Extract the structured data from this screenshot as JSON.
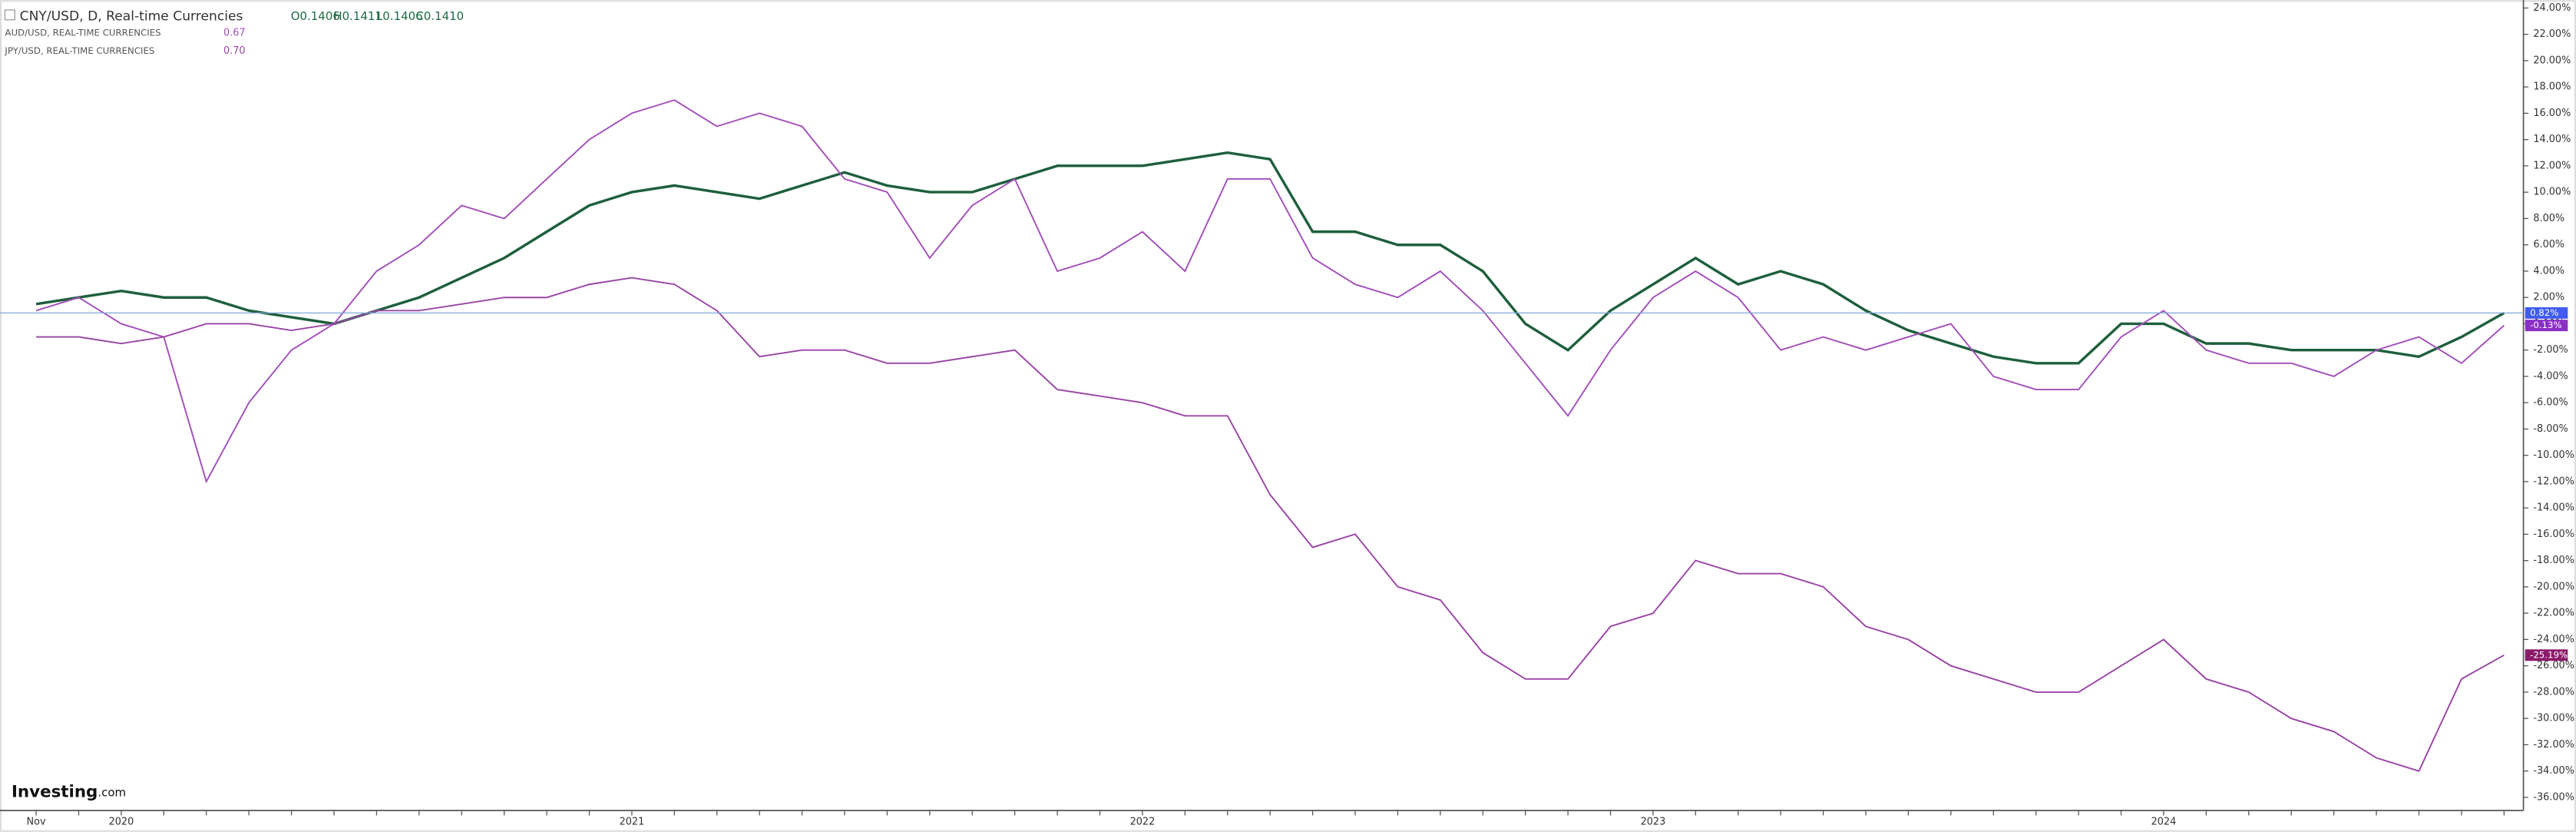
{
  "chart_data": {
    "type": "line",
    "header": {
      "title": "CNY/USD, D, Real-time Currencies",
      "ohlc": [
        "O0.1406",
        "H0.1411",
        "L0.1406",
        "C0.1410"
      ]
    },
    "logo": {
      "brand": "Investing",
      "suffix": ".com"
    },
    "categories": [
      "Nov",
      null,
      "2020",
      null,
      null,
      null,
      null,
      null,
      null,
      null,
      null,
      null,
      null,
      null,
      "2021",
      null,
      null,
      null,
      null,
      null,
      null,
      null,
      null,
      null,
      null,
      null,
      "2022",
      null,
      null,
      null,
      null,
      null,
      null,
      null,
      null,
      null,
      null,
      null,
      "2023",
      null,
      null,
      null,
      null,
      null,
      null,
      null,
      null,
      null,
      null,
      null,
      "2024",
      null,
      null,
      null,
      null,
      null,
      null,
      null,
      null
    ],
    "series": [
      {
        "name": "CNY/USD, D, Real-time Currencies",
        "color": "#1e5f3c",
        "label_color": "#3f5bf0",
        "values": [
          1.5,
          2,
          2.5,
          2,
          2,
          1,
          0.5,
          0,
          1,
          2,
          3.5,
          5,
          7,
          9,
          10,
          10.5,
          10,
          9.5,
          10.5,
          11.5,
          10.5,
          10,
          10,
          11,
          12,
          12,
          12,
          12.5,
          13,
          12.5,
          7,
          7,
          6,
          6,
          4,
          0,
          -2,
          1,
          3,
          5,
          3,
          4,
          3,
          1,
          -0.5,
          -1.5,
          -2.5,
          -3,
          -3,
          0,
          0,
          -1.5,
          -1.5,
          -2,
          -2,
          -2,
          -2.5,
          -1,
          0.82
        ],
        "value_labels": [
          null,
          null,
          null,
          null,
          null,
          null,
          null,
          null,
          null,
          null,
          null,
          null,
          null,
          null,
          null,
          null,
          null,
          null,
          null,
          null,
          null,
          null,
          null,
          null,
          null,
          null,
          null,
          null,
          null,
          null,
          null,
          null,
          null,
          null,
          null,
          null,
          null,
          null,
          null,
          null,
          null,
          null,
          null,
          null,
          null,
          null,
          null,
          null,
          null,
          null,
          null,
          null,
          null,
          null,
          null,
          null,
          null,
          null,
          "0.82%"
        ]
      },
      {
        "name": "AUD/USD, REAL-TIME CURRENCIES",
        "last": "0.67",
        "color": "#a24fba",
        "label_color": "#8a2fc4",
        "values": [
          1,
          2,
          0,
          -1,
          -12,
          -6,
          -2,
          0,
          4,
          6,
          9,
          8,
          11,
          14,
          16,
          17,
          15,
          16,
          15,
          11,
          10,
          5,
          9,
          11,
          4,
          5,
          7,
          4,
          11,
          11,
          5,
          3,
          2,
          4,
          1,
          -3,
          -7,
          -2,
          2,
          4,
          2,
          -2,
          -1,
          -2,
          -1,
          0,
          -4,
          -5,
          -5,
          -1,
          1,
          -2,
          -3,
          -3,
          -4,
          -2,
          -1,
          -3,
          -0.13
        ],
        "value_labels": [
          null,
          null,
          null,
          null,
          null,
          null,
          null,
          null,
          null,
          null,
          null,
          null,
          null,
          null,
          null,
          null,
          null,
          null,
          null,
          null,
          null,
          null,
          null,
          null,
          null,
          null,
          null,
          null,
          null,
          null,
          null,
          null,
          null,
          null,
          null,
          null,
          null,
          null,
          null,
          null,
          null,
          null,
          null,
          null,
          null,
          null,
          null,
          null,
          null,
          null,
          null,
          null,
          null,
          null,
          null,
          null,
          null,
          null,
          "-0.13%"
        ]
      },
      {
        "name": "JPY/USD, REAL-TIME CURRENCIES",
        "last": "0.70",
        "color": "#9a45a6",
        "label_color": "#8c1a6a",
        "values": [
          -1,
          -1,
          -1.5,
          -1,
          0,
          0,
          -0.5,
          0,
          1,
          1,
          1.5,
          2,
          2,
          3,
          3.5,
          3,
          1,
          -2.5,
          -2,
          -2,
          -3,
          -3,
          -2.5,
          -2,
          -5,
          -5.5,
          -6,
          -7,
          -7,
          -13,
          -17,
          -16,
          -20,
          -21,
          -25,
          -27,
          -27,
          -23,
          -22,
          -18,
          -19,
          -19,
          -20,
          -23,
          -24,
          -26,
          -27,
          -28,
          -28,
          -26,
          -24,
          -27,
          -28,
          -30,
          -31,
          -33,
          -34,
          -27,
          -25.19
        ],
        "value_labels": [
          null,
          null,
          null,
          null,
          null,
          null,
          null,
          null,
          null,
          null,
          null,
          null,
          null,
          null,
          null,
          null,
          null,
          null,
          null,
          null,
          null,
          null,
          null,
          null,
          null,
          null,
          null,
          null,
          null,
          null,
          null,
          null,
          null,
          null,
          null,
          null,
          null,
          null,
          null,
          null,
          null,
          null,
          null,
          null,
          null,
          null,
          null,
          null,
          null,
          null,
          null,
          null,
          null,
          null,
          null,
          null,
          null,
          null,
          "-25.19%"
        ]
      }
    ],
    "ylim": [
      -37,
      24.6
    ],
    "yticks": [
      {
        "value": 24,
        "label": "24.00%"
      },
      {
        "value": 22,
        "label": "22.00%"
      },
      {
        "value": 20,
        "label": "20.00%"
      },
      {
        "value": 18,
        "label": "18.00%"
      },
      {
        "value": 16,
        "label": "16.00%"
      },
      {
        "value": 14,
        "label": "14.00%"
      },
      {
        "value": 12,
        "label": "12.00%"
      },
      {
        "value": 10,
        "label": "10.00%"
      },
      {
        "value": 8,
        "label": "8.00%"
      },
      {
        "value": 6,
        "label": "6.00%"
      },
      {
        "value": 4,
        "label": "4.00%"
      },
      {
        "value": 2,
        "label": "2.00%"
      },
      {
        "value": 0,
        "label": "0.00%"
      },
      {
        "value": -2,
        "label": "-2.00%"
      },
      {
        "value": -4,
        "label": "-4.00%"
      },
      {
        "value": -6,
        "label": "-6.00%"
      },
      {
        "value": -8,
        "label": "-8.00%"
      },
      {
        "value": -10,
        "label": "-10.00%"
      },
      {
        "value": -12,
        "label": "-12.00%"
      },
      {
        "value": -14,
        "label": "-14.00%"
      },
      {
        "value": -16,
        "label": "-16.00%"
      },
      {
        "value": -18,
        "label": "-18.00%"
      },
      {
        "value": -20,
        "label": "-20.00%"
      },
      {
        "value": -22,
        "label": "-22.00%"
      },
      {
        "value": -24,
        "label": "-24.00%"
      },
      {
        "value": -26,
        "label": "-26.00%"
      },
      {
        "value": -28,
        "label": "-28.00%"
      },
      {
        "value": -30,
        "label": "-30.00%"
      },
      {
        "value": -32,
        "label": "-32.00%"
      },
      {
        "value": -34,
        "label": "-34.00%"
      },
      {
        "value": -36,
        "label": "-36.00%"
      }
    ],
    "grid": false
  }
}
